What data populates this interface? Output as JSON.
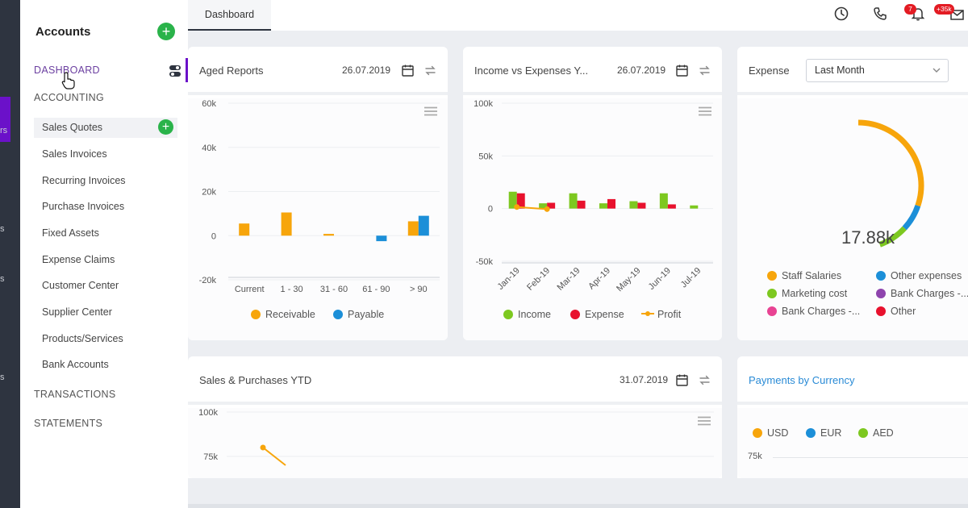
{
  "app": {
    "tab": "Dashboard",
    "notifications_badge": "7",
    "messages_badge": "+35k"
  },
  "rail": {
    "fragments": [
      "rs",
      "s",
      "s",
      "s"
    ]
  },
  "sidebar": {
    "title": "Accounts",
    "sections": {
      "dashboard": "DASHBOARD",
      "accounting": "ACCOUNTING",
      "transactions": "TRANSACTIONS",
      "statements": "STATEMENTS"
    },
    "items": [
      "Sales Quotes",
      "Sales Invoices",
      "Recurring Invoices",
      "Purchase Invoices",
      "Fixed Assets",
      "Expense Claims",
      "Customer Center",
      "Supplier Center",
      "Products/Services",
      "Bank Accounts"
    ]
  },
  "cards": {
    "aged": {
      "title": "Aged Reports",
      "date": "26.07.2019"
    },
    "income": {
      "title": "Income vs Expenses Y...",
      "date": "26.07.2019"
    },
    "expense": {
      "title": "Expense",
      "select_value": "Last Month",
      "center_value": "17.88k"
    },
    "sales": {
      "title": "Sales & Purchases YTD",
      "date": "31.07.2019"
    },
    "payments": {
      "title": "Payments by Currency"
    }
  },
  "colors": {
    "accent": "#6b11c9",
    "green": "#2ab34a",
    "orange": "#f7a50b",
    "blue": "#1c8fd8",
    "lime": "#7dc820",
    "red": "#e8112d",
    "purple": "#8e44ad",
    "pink": "#e84393"
  },
  "chart_data": [
    {
      "type": "bar",
      "title": "Aged Reports",
      "categories": [
        "Current",
        "1 - 30",
        "31 - 60",
        "61 - 90",
        "> 90"
      ],
      "series": [
        {
          "name": "Receivable",
          "values": [
            5500,
            10500,
            800,
            0,
            6500
          ]
        },
        {
          "name": "Payable",
          "values": [
            0,
            0,
            0,
            -2500,
            9000
          ]
        }
      ],
      "yticks": [
        "60k",
        "40k",
        "20k",
        "0",
        "-20k"
      ],
      "ylim": [
        -20000,
        60000
      ]
    },
    {
      "type": "bar",
      "title": "Income vs Expenses Y...",
      "categories": [
        "Jan-19",
        "Feb-19",
        "Mar-19",
        "Apr-19",
        "May-19",
        "Jun-19",
        "Jul-19"
      ],
      "series": [
        {
          "name": "Income",
          "values": [
            16000,
            5000,
            14500,
            5000,
            7000,
            14500,
            3000
          ]
        },
        {
          "name": "Expense",
          "values": [
            14500,
            5500,
            7500,
            9000,
            5500,
            4000,
            0
          ]
        },
        {
          "name": "Profit",
          "values": [
            1500,
            -500,
            null,
            null,
            null,
            null,
            null
          ]
        }
      ],
      "yticks": [
        "100k",
        "50k",
        "0",
        "-50k"
      ],
      "ylim": [
        -50000,
        100000
      ]
    },
    {
      "type": "pie",
      "title": "Expense",
      "center_label": "17.88k",
      "series": [
        {
          "name": "Staff Salaries",
          "value": 68
        },
        {
          "name": "Other expenses",
          "value": 15
        },
        {
          "name": "Marketing cost",
          "value": 17
        },
        {
          "name": "Bank Charges -...",
          "value": 0
        },
        {
          "name": "Bank Charges -...",
          "value": 0
        },
        {
          "name": "Other",
          "value": 0
        }
      ]
    },
    {
      "type": "line",
      "title": "Sales & Purchases YTD",
      "yticks": [
        "100k",
        "75k"
      ],
      "series": [
        {
          "values": [
            80000,
            70000
          ]
        }
      ]
    },
    {
      "type": "line",
      "title": "Payments by Currency",
      "series": [
        {
          "name": "USD"
        },
        {
          "name": "EUR"
        },
        {
          "name": "AED"
        }
      ],
      "yticks": [
        "75k"
      ]
    }
  ]
}
